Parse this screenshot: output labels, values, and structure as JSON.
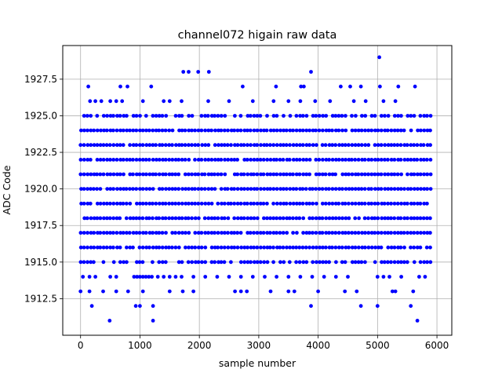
{
  "chart_data": {
    "type": "scatter",
    "title": "channel072 higain raw data",
    "xlabel": "sample number",
    "ylabel": "ADC Code",
    "xlim": [
      -300,
      6250
    ],
    "ylim": [
      1910.0,
      1929.8
    ],
    "xticks": [
      0,
      1000,
      2000,
      3000,
      4000,
      5000,
      6000
    ],
    "xtick_labels": [
      "0",
      "1000",
      "2000",
      "3000",
      "4000",
      "5000",
      "6000"
    ],
    "yticks": [
      1912.5,
      1915.0,
      1917.5,
      1920.0,
      1922.5,
      1925.0,
      1927.5
    ],
    "ytick_labels": [
      "1912.5",
      "1915.0",
      "1917.5",
      "1920.0",
      "1922.5",
      "1925.0",
      "1927.5"
    ],
    "grid": true,
    "marker_color": "#0000ff",
    "x_range": [
      0,
      5930
    ],
    "dense_levels": [
      1916,
      1917,
      1918,
      1919,
      1920,
      1921,
      1922,
      1923,
      1924
    ],
    "medium_levels": [
      1915,
      1925
    ],
    "sparse_points": [
      {
        "y": 1914,
        "x": [
          40,
          150,
          250,
          500,
          600,
          900,
          950,
          1000,
          1050,
          1100,
          1150,
          1200,
          1300,
          1400,
          1500,
          1600,
          1700,
          1900,
          2100,
          2300,
          2500,
          2700,
          2900,
          3100,
          3300,
          3500,
          3700,
          3900,
          4100,
          4300,
          4500,
          5000,
          5100,
          5200,
          5400,
          5700,
          5800
        ]
      },
      {
        "y": 1926,
        "x": [
          160,
          250,
          350,
          500,
          600,
          700,
          1050,
          1400,
          1500,
          1700,
          2150,
          2500,
          2900,
          3250,
          3500,
          3700,
          3950,
          4200,
          4600,
          4800,
          5100,
          5300
        ]
      },
      {
        "y": 1913,
        "x": [
          0,
          150,
          380,
          600,
          800,
          1050,
          1500,
          1720,
          1900,
          2600,
          2700,
          2800,
          3200,
          3500,
          3600,
          4000,
          4450,
          4650,
          5250,
          5300,
          5600
        ]
      },
      {
        "y": 1927,
        "x": [
          130,
          670,
          790,
          1190,
          2730,
          3290,
          3710,
          3760,
          4380,
          4540,
          4720,
          5040,
          5350,
          5630
        ]
      },
      {
        "y": 1912,
        "x": [
          190,
          930,
          1000,
          1220,
          3880,
          4720,
          5000,
          5560
        ]
      },
      {
        "y": 1928,
        "x": [
          1730,
          1820,
          1980,
          2160,
          3880
        ]
      },
      {
        "y": 1911,
        "x": [
          490,
          1220,
          5670
        ]
      },
      {
        "y": 1929,
        "x": [
          5030
        ]
      }
    ]
  }
}
